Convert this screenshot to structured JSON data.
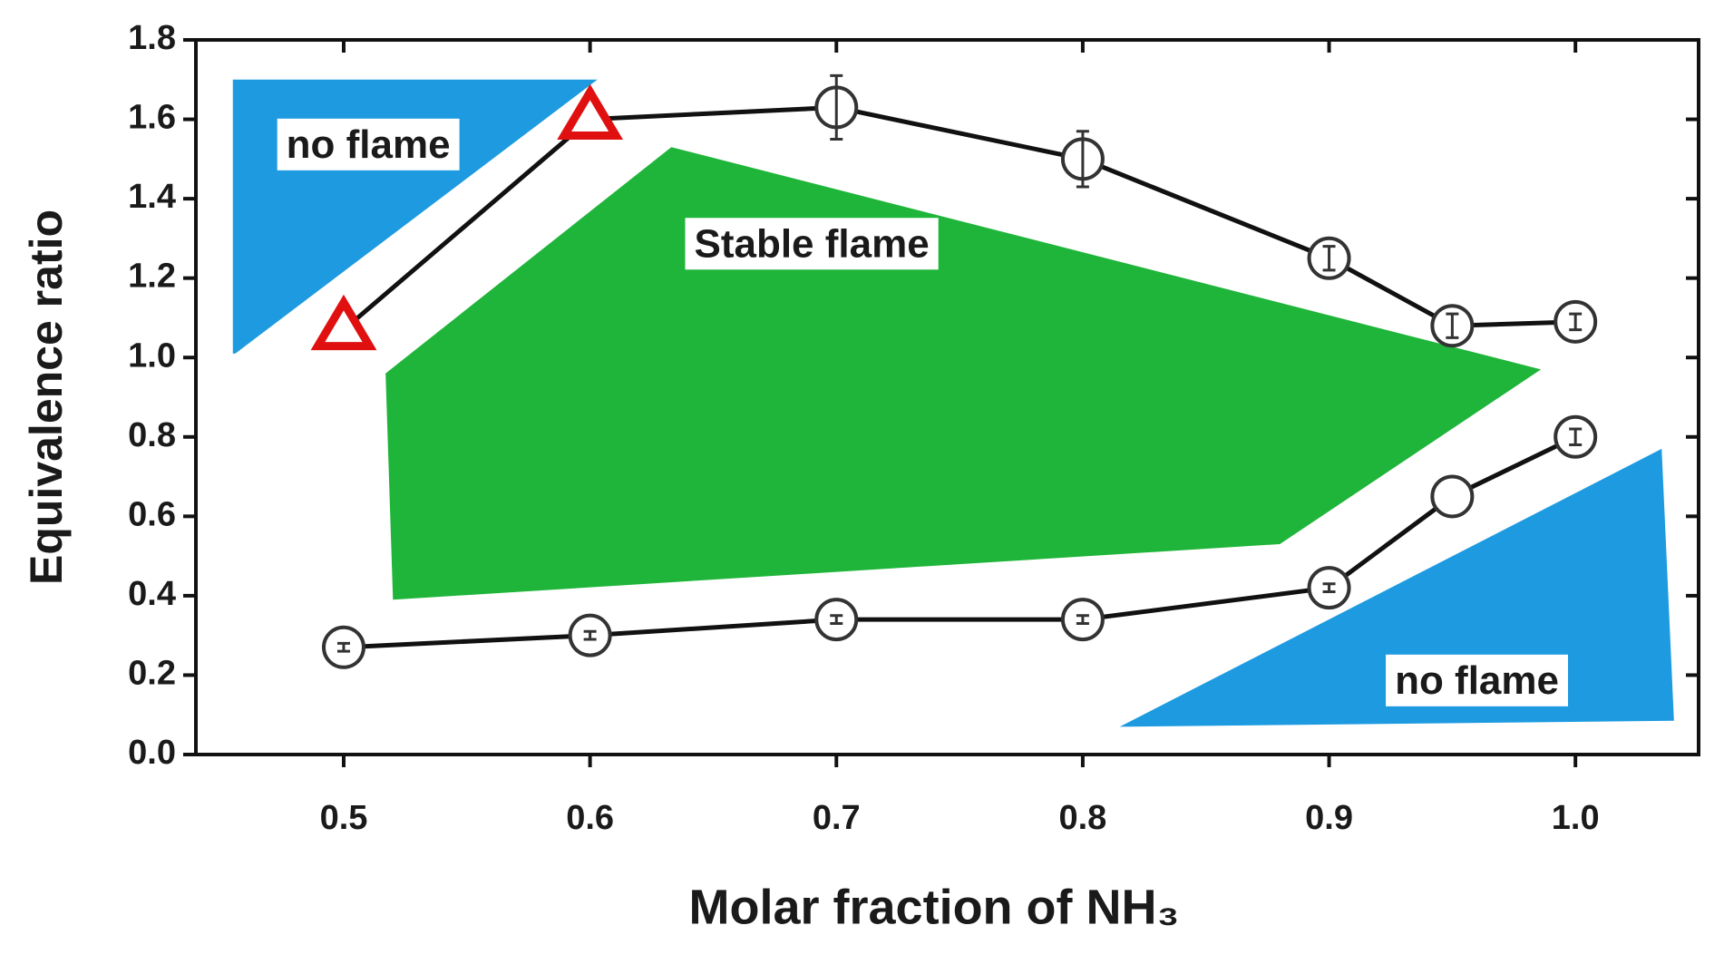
{
  "chart_data": {
    "type": "line",
    "x_label": "Molar fraction of NH₃",
    "y_label": "Equivalence  ratio",
    "xlim": [
      0.44,
      1.05
    ],
    "xticks": [
      0.5,
      0.6,
      0.7,
      0.8,
      0.9,
      {
        "value": 1.0,
        "label": "1.0"
      }
    ],
    "ylim": [
      0,
      1.8
    ],
    "yticks": [
      {
        "value": 0,
        "label": "0.0"
      },
      0.2,
      0.4,
      0.6,
      0.8,
      {
        "value": 1.0,
        "label": "1.0"
      },
      1.2,
      1.4,
      1.6,
      1.8
    ],
    "regions": [
      {
        "label": "no flame",
        "color": "#1e9be0",
        "x": [
          0.455,
          0.455,
          0.603,
          0.456
        ],
        "y": [
          1.01,
          1.7,
          1.7,
          1.01
        ],
        "label_x": 0.51,
        "label_y": 1.53
      },
      {
        "label": "Stable flame",
        "color": "#1fb53a",
        "x": [
          0.517,
          0.633,
          0.986,
          0.88,
          0.52
        ],
        "y": [
          0.96,
          1.53,
          0.97,
          0.53,
          0.39
        ],
        "label_x": 0.69,
        "label_y": 1.28
      },
      {
        "label": "no flame",
        "color": "#1e9be0",
        "x": [
          0.815,
          1.035,
          1.04
        ],
        "y": [
          0.07,
          0.77,
          0.085
        ],
        "label_x": 0.96,
        "label_y": 0.18
      }
    ],
    "series": [
      {
        "color": "#111111",
        "markers": [
          "triangle",
          "triangle",
          "circle",
          "circle",
          "circle",
          "circle",
          "circle"
        ],
        "marker_colors": [
          "#e01010",
          "#e01010",
          "#333333",
          "#333333",
          "#333333",
          "#333333",
          "#333333"
        ],
        "x": [
          0.5,
          0.6,
          0.7,
          0.8,
          0.9,
          0.95,
          1.0
        ],
        "values": [
          1.07,
          1.6,
          1.63,
          1.5,
          1.25,
          1.08,
          1.09
        ],
        "errors": [
          null,
          null,
          0.08,
          0.07,
          0.03,
          0.03,
          0.02
        ]
      },
      {
        "color": "#111111",
        "markers": [
          "circle",
          "circle",
          "circle",
          "circle",
          "circle",
          "circle",
          "circle"
        ],
        "marker_colors": [
          "#333333",
          "#333333",
          "#333333",
          "#333333",
          "#333333",
          "#333333",
          "#333333"
        ],
        "x": [
          0.5,
          0.6,
          0.7,
          0.8,
          0.9,
          0.95,
          1.0
        ],
        "values": [
          0.27,
          0.3,
          0.34,
          0.34,
          0.42,
          0.65,
          0.8
        ],
        "errors": [
          0.01,
          0.01,
          0.01,
          0.01,
          0.01,
          null,
          0.02
        ]
      }
    ]
  }
}
